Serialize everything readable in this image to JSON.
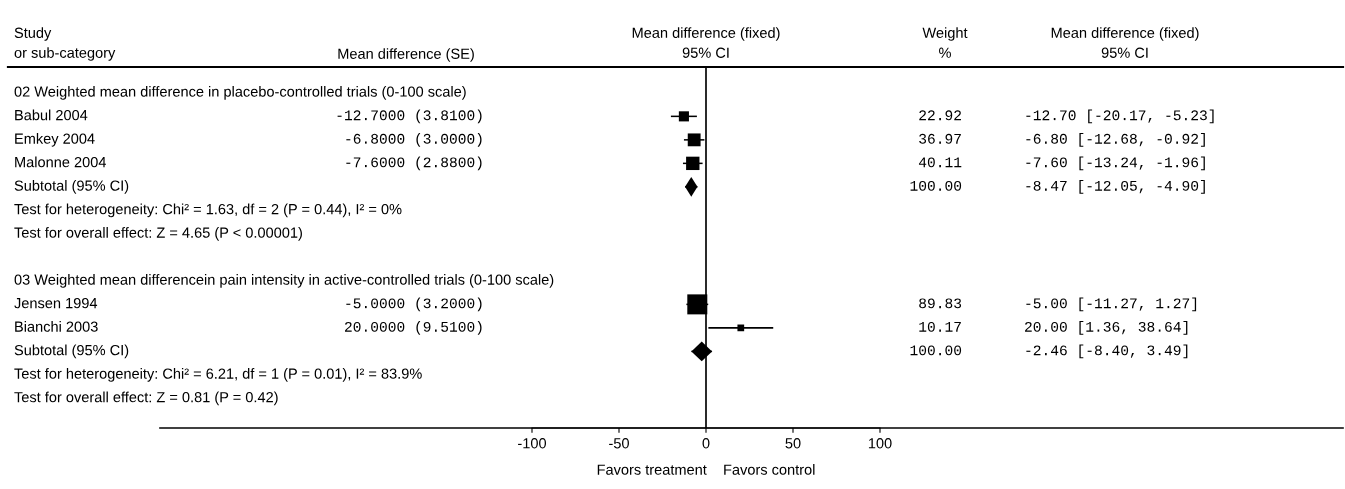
{
  "chart_data": {
    "type": "scatter",
    "orientation": "horizontal",
    "title": "Mean difference (fixed)\n95% CI",
    "ylabel": "Study\nor sub-category",
    "xlabel": "Favors treatment    Favors control",
    "categories": [
      "02 Weighted mean difference in placebo-controlled trials (0-100 scale)",
      "Babul 2004",
      "Emkey 2004",
      "Malonne 2004",
      "Subtotal (95% CI)",
      "Test for heterogeneity: Chi² = 1.63, df = 2 (P = 0.44), I² = 0%",
      "Test for overall effect: Z = 4.65 (P < 0.00001)",
      null,
      "03 Weighted mean differencein pain intensity in active-controlled trials (0-100 scale)",
      "Jensen 1994",
      "Bianchi 2003",
      "Subtotal (95% CI)",
      "Test for heterogeneity: Chi² = 6.21, df = 1 (P = 0.01), I² = 83.9%",
      "Test for overall effect: Z = 0.81 (P = 0.42)"
    ],
    "series": [
      {
        "marker": "square",
        "color": "#000000",
        "values": [
          null,
          -12.7,
          -6.8,
          -7.6,
          null,
          null,
          null,
          null,
          null,
          -5.0,
          20.0,
          null,
          null,
          null
        ],
        "errors": [
          null,
          [
            -20.17,
            -5.23
          ],
          [
            -12.68,
            -0.92
          ],
          [
            -13.24,
            -1.96
          ],
          null,
          null,
          null,
          null,
          null,
          [
            -11.27,
            1.27
          ],
          [
            1.36,
            38.64
          ],
          null,
          null,
          null
        ],
        "sizes": [
          null,
          0.255,
          0.412,
          0.447,
          null,
          null,
          null,
          null,
          null,
          1,
          0.113,
          null,
          null,
          null
        ]
      },
      {
        "marker": "diamond",
        "color": "#000000",
        "values": [
          null,
          null,
          null,
          null,
          -8.47,
          null,
          null,
          null,
          null,
          null,
          null,
          -2.46,
          null,
          null
        ],
        "errors": [
          null,
          null,
          null,
          null,
          [
            -12.05,
            -4.9
          ],
          null,
          null,
          null,
          null,
          null,
          null,
          [
            -8.4,
            3.49
          ],
          null,
          null
        ]
      }
    ],
    "xlim": [
      -100,
      100
    ],
    "xticks": [
      -100,
      -50,
      0,
      50,
      100
    ],
    "ref_lines": [
      {
        "axis": "x",
        "value": 0,
        "color": "#000000"
      }
    ],
    "annotations": [
      "Mean difference (SE)",
      "Weight\n%",
      "Mean difference (fixed)\n95% CI",
      "-12.7000 (3.8100)",
      "-6.8000 (3.0000)",
      "-7.6000 (2.8800)",
      "-5.0000 (3.2000)",
      "20.0000 (9.5100)",
      "22.92",
      "36.97",
      "40.11",
      "100.00",
      "89.83",
      "10.17",
      "100.00",
      "-12.70 [-20.17, -5.23]",
      "-6.80 [-12.68, -0.92]",
      "-7.60 [-13.24, -1.96]",
      "-8.47 [-12.05, -4.90]",
      "-5.00 [-11.27, 1.27]",
      "20.00 [1.36, 38.64]",
      "-2.46 [-8.40, 3.49]"
    ],
    "grid": false
  }
}
